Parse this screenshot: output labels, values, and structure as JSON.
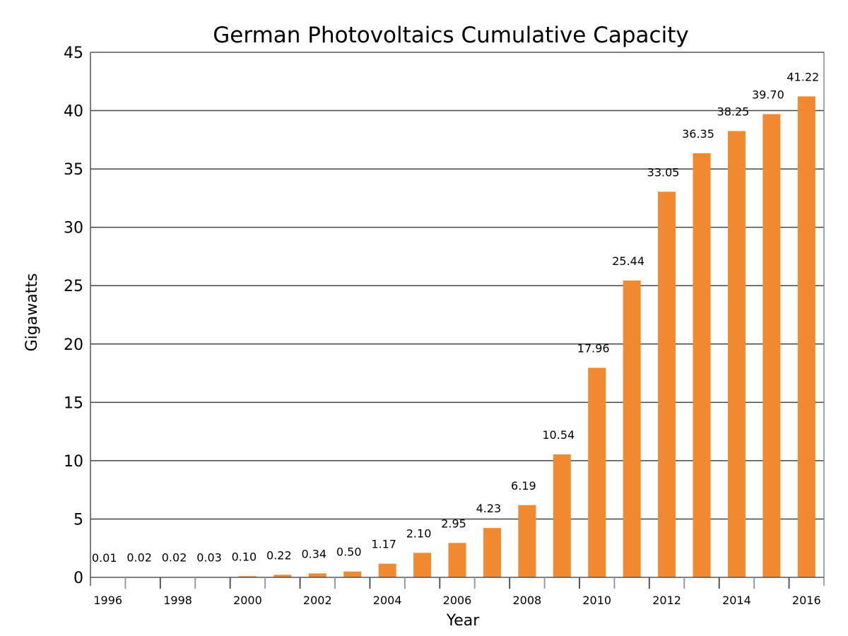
{
  "chart_data": {
    "type": "bar",
    "title": "German Photovoltaics Cumulative Capacity",
    "xlabel": "Year",
    "ylabel": "Gigawatts",
    "ylim": [
      0,
      45
    ],
    "yticks": [
      0,
      5,
      10,
      15,
      20,
      25,
      30,
      35,
      40,
      45
    ],
    "grid": "horizontal",
    "categories": [
      "1996",
      "1997",
      "1998",
      "1999",
      "2000",
      "2001",
      "2002",
      "2003",
      "2004",
      "2005",
      "2006",
      "2007",
      "2008",
      "2009",
      "2010",
      "2011",
      "2012",
      "2013",
      "2014",
      "2015",
      "2016"
    ],
    "xtick_labels": [
      "1996",
      "1998",
      "2000",
      "2002",
      "2004",
      "2006",
      "2008",
      "2010",
      "2012",
      "2014",
      "2016"
    ],
    "values": [
      0.01,
      0.02,
      0.02,
      0.03,
      0.1,
      0.22,
      0.34,
      0.5,
      1.17,
      2.1,
      2.95,
      4.23,
      6.19,
      10.54,
      17.96,
      25.44,
      33.05,
      36.35,
      38.25,
      39.7,
      41.22
    ],
    "data_labels": [
      "0.01",
      "0.02",
      "0.02",
      "0.03",
      "0.10",
      "0.22",
      "0.34",
      "0.50",
      "1.17",
      "2.10",
      "2.95",
      "4.23",
      "6.19",
      "10.54",
      "17.96",
      "25.44",
      "33.05",
      "36.35",
      "38.25",
      "39.70",
      "41.22"
    ],
    "colors": {
      "bar": "#f0892f",
      "grid": "#444444",
      "frame": "#888888"
    }
  }
}
